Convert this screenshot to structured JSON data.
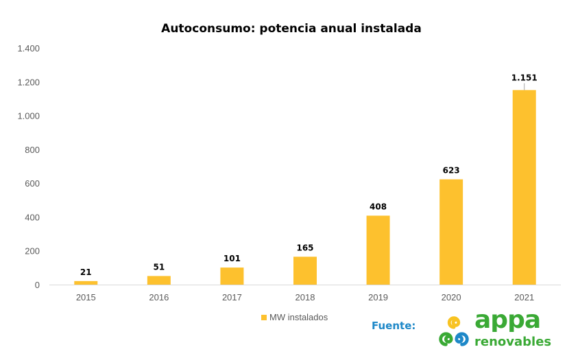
{
  "chart_data": {
    "type": "bar",
    "title": "Autoconsumo: potencia anual instalada",
    "xlabel": "",
    "ylabel": "",
    "categories": [
      "2015",
      "2016",
      "2017",
      "2018",
      "2019",
      "2020",
      "2021"
    ],
    "series": [
      {
        "name": "MW instalados",
        "values": [
          21,
          51,
          101,
          165,
          408,
          623,
          1151
        ],
        "color": "#fdc12e"
      }
    ],
    "data_labels": [
      "21",
      "51",
      "101",
      "165",
      "408",
      "623",
      "1.151"
    ],
    "ylim": [
      0,
      1400
    ],
    "yticks": [
      0,
      200,
      400,
      600,
      800,
      1000,
      1200,
      1400
    ],
    "ytick_labels": [
      "0",
      "200",
      "400",
      "600",
      "800",
      "1.000",
      "1.200",
      "1.400"
    ],
    "grid": false,
    "legend_position": "bottom"
  },
  "source": {
    "label": "Fuente:",
    "logo_word1": "appa",
    "logo_word2": "renovables",
    "logo_colors": {
      "yellow": "#f8c322",
      "green": "#3aa935",
      "blue": "#1e88c8"
    }
  }
}
